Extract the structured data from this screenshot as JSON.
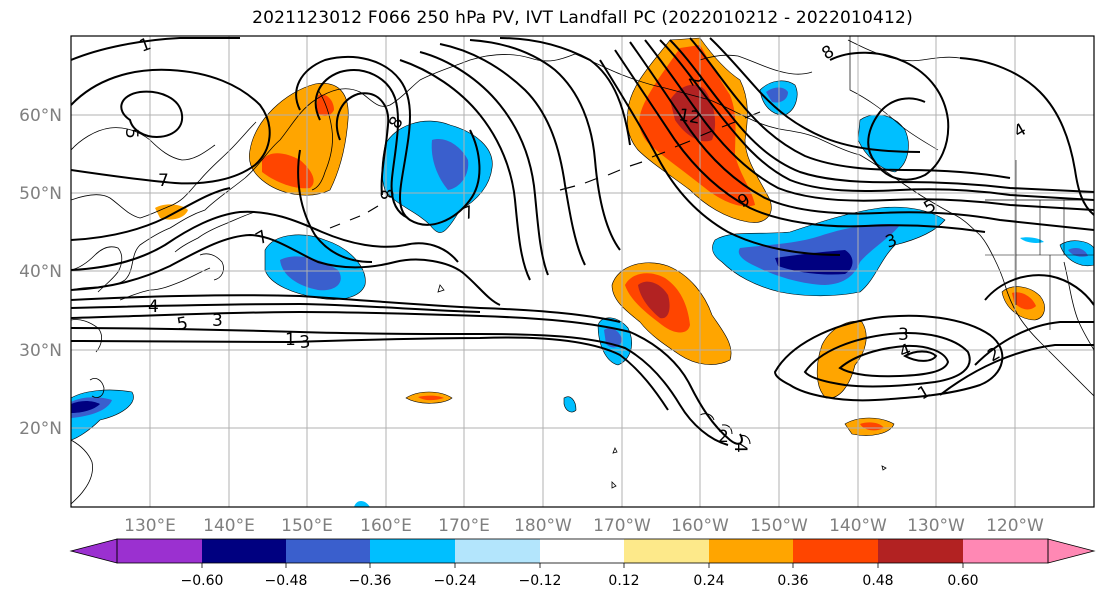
{
  "title": "2021123012 F066 250 hPa PV, IVT Landfall PC (2022010212 - 2022010412)",
  "lat_labels": [
    "60°N",
    "50°N",
    "40°N",
    "30°N",
    "20°N"
  ],
  "lon_labels": [
    "130°E",
    "140°E",
    "150°E",
    "160°E",
    "170°E",
    "180°W",
    "170°W",
    "160°W",
    "150°W",
    "140°W",
    "130°W",
    "120°W"
  ],
  "colorbar": {
    "colors": [
      "#9b30d0",
      "#000080",
      "#3a5fcd",
      "#00bfff",
      "#b3e5fc",
      "#ffffff",
      "#ffffff",
      "#fde98a",
      "#ffa500",
      "#ff4500",
      "#b22222",
      "#ff88b4"
    ],
    "ticks": [
      "−0.60",
      "−0.48",
      "−0.36",
      "−0.24",
      "−0.12",
      "0.12",
      "0.24",
      "0.36",
      "0.48",
      "0.60"
    ]
  },
  "contour_labels": [
    "1",
    "7",
    "5",
    "7",
    "8",
    "8",
    "7",
    "4",
    "5",
    "3",
    "1",
    "8",
    "12",
    "9",
    "2",
    "3",
    "4",
    "5",
    "3",
    "4",
    "2",
    "1",
    "2",
    "4",
    "3"
  ],
  "colors": {
    "neg_dark": "#000080",
    "neg_mid": "#3a5fcd",
    "neg_light": "#00bfff",
    "neg_pale": "#b3e5fc",
    "pos_light": "#ffa500",
    "pos_mid": "#ff4500",
    "pos_dark": "#b22222",
    "grid": "#b0b0b0"
  }
}
